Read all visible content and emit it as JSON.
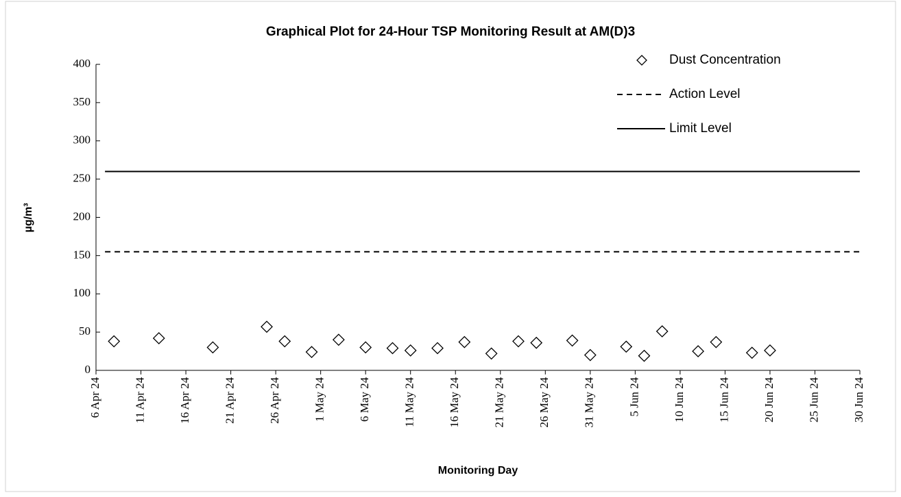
{
  "chart_data": {
    "type": "scatter",
    "title": "Graphical Plot for 24-Hour TSP Monitoring Result at AM(D)3",
    "x_label": "Monitoring Day",
    "y_label": "µg/m³",
    "xlim": [
      "2024-04-06",
      "2024-06-30"
    ],
    "xticks": [
      {
        "value": "2024-04-06",
        "label": "6 Apr 24"
      },
      {
        "value": "2024-04-11",
        "label": "11 Apr 24"
      },
      {
        "value": "2024-04-16",
        "label": "16 Apr 24"
      },
      {
        "value": "2024-04-21",
        "label": "21 Apr 24"
      },
      {
        "value": "2024-04-26",
        "label": "26 Apr 24"
      },
      {
        "value": "2024-05-01",
        "label": "1 May 24"
      },
      {
        "value": "2024-05-06",
        "label": "6 May 24"
      },
      {
        "value": "2024-05-11",
        "label": "11 May 24"
      },
      {
        "value": "2024-05-16",
        "label": "16 May 24"
      },
      {
        "value": "2024-05-21",
        "label": "21 May 24"
      },
      {
        "value": "2024-05-26",
        "label": "26 May 24"
      },
      {
        "value": "2024-05-31",
        "label": "31 May 24"
      },
      {
        "value": "2024-06-05",
        "label": "5 Jun 24"
      },
      {
        "value": "2024-06-10",
        "label": "10 Jun 24"
      },
      {
        "value": "2024-06-15",
        "label": "15 Jun 24"
      },
      {
        "value": "2024-06-20",
        "label": "20 Jun 24"
      },
      {
        "value": "2024-06-25",
        "label": "25 Jun 24"
      },
      {
        "value": "2024-06-30",
        "label": "30 Jun 24"
      }
    ],
    "ylim": [
      0,
      400
    ],
    "yticks": [
      0,
      50,
      100,
      150,
      200,
      250,
      300,
      350,
      400
    ],
    "legend": "upper right",
    "series": [
      {
        "name": "Dust Concentration",
        "marker": "diamond",
        "color": "#000000",
        "x": [
          "2024-04-08",
          "2024-04-13",
          "2024-04-19",
          "2024-04-25",
          "2024-04-27",
          "2024-04-30",
          "2024-05-03",
          "2024-05-06",
          "2024-05-09",
          "2024-05-11",
          "2024-05-14",
          "2024-05-17",
          "2024-05-20",
          "2024-05-23",
          "2024-05-25",
          "2024-05-29",
          "2024-05-31",
          "2024-06-04",
          "2024-06-06",
          "2024-06-08",
          "2024-06-12",
          "2024-06-14",
          "2024-06-18",
          "2024-06-20"
        ],
        "values": [
          38,
          42,
          30,
          57,
          38,
          24,
          40,
          30,
          29,
          26,
          29,
          37,
          22,
          38,
          36,
          39,
          20,
          31,
          19,
          51,
          25,
          37,
          23,
          26
        ]
      },
      {
        "name": "Action Level",
        "line": "dashed",
        "color": "#000000",
        "x": [
          "2024-04-07",
          "2024-06-30"
        ],
        "values": [
          155,
          155
        ]
      },
      {
        "name": "Limit Level",
        "line": "solid",
        "color": "#000000",
        "x": [
          "2024-04-07",
          "2024-06-30"
        ],
        "values": [
          260,
          260
        ]
      }
    ]
  }
}
